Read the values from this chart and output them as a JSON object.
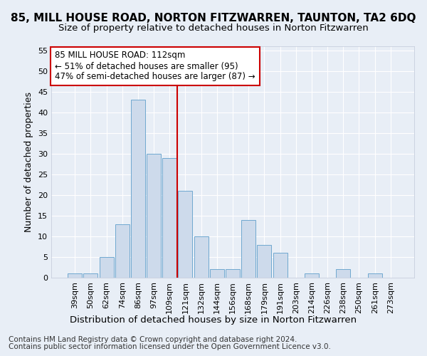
{
  "title": "85, MILL HOUSE ROAD, NORTON FITZWARREN, TAUNTON, TA2 6DQ",
  "subtitle": "Size of property relative to detached houses in Norton Fitzwarren",
  "xlabel": "Distribution of detached houses by size in Norton Fitzwarren",
  "ylabel": "Number of detached properties",
  "footnote1": "Contains HM Land Registry data © Crown copyright and database right 2024.",
  "footnote2": "Contains public sector information licensed under the Open Government Licence v3.0.",
  "categories": [
    "39sqm",
    "50sqm",
    "62sqm",
    "74sqm",
    "86sqm",
    "97sqm",
    "109sqm",
    "121sqm",
    "132sqm",
    "144sqm",
    "156sqm",
    "168sqm",
    "179sqm",
    "191sqm",
    "203sqm",
    "214sqm",
    "226sqm",
    "238sqm",
    "250sqm",
    "261sqm",
    "273sqm"
  ],
  "values": [
    1,
    1,
    5,
    13,
    43,
    30,
    29,
    21,
    10,
    2,
    2,
    14,
    8,
    6,
    0,
    1,
    0,
    2,
    0,
    1,
    0
  ],
  "bar_color": "#cddaeb",
  "bar_edge_color": "#6fa8d0",
  "vline_color": "#cc0000",
  "vline_x_idx": 6.5,
  "annotation_text": "85 MILL HOUSE ROAD: 112sqm\n← 51% of detached houses are smaller (95)\n47% of semi-detached houses are larger (87) →",
  "annotation_box_color": "white",
  "annotation_box_edge": "#cc0000",
  "ylim": [
    0,
    56
  ],
  "yticks": [
    0,
    5,
    10,
    15,
    20,
    25,
    30,
    35,
    40,
    45,
    50,
    55
  ],
  "bg_color": "#e8eef6",
  "plot_bg_color": "#e8eef6",
  "grid_color": "#ffffff",
  "title_fontsize": 11,
  "subtitle_fontsize": 9.5,
  "xlabel_fontsize": 9.5,
  "ylabel_fontsize": 9,
  "tick_fontsize": 8,
  "annotation_fontsize": 8.5,
  "footnote_fontsize": 7.5
}
